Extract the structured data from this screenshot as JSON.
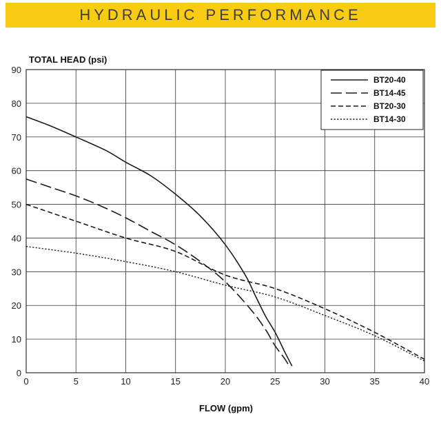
{
  "header": {
    "title": "HYDRAULIC PERFORMANCE",
    "color": "#f9cc14"
  },
  "chart_data": {
    "type": "line",
    "xlabel": "FLOW (gpm)",
    "ylabel": "TOTAL HEAD (psi)",
    "xlim": [
      0,
      40
    ],
    "ylim": [
      0,
      90
    ],
    "xticks": [
      0,
      5,
      10,
      15,
      20,
      25,
      30,
      35,
      40
    ],
    "yticks": [
      0,
      10,
      20,
      30,
      40,
      50,
      60,
      70,
      80,
      90
    ],
    "grid": true,
    "legend_position": "top-right",
    "series": [
      {
        "name": "BT20-40",
        "dash": "solid",
        "points": [
          [
            0,
            76
          ],
          [
            2.5,
            73.2
          ],
          [
            5,
            70
          ],
          [
            8,
            66
          ],
          [
            10,
            62.5
          ],
          [
            12.5,
            58.5
          ],
          [
            15,
            53
          ],
          [
            17.5,
            46.5
          ],
          [
            20,
            38
          ],
          [
            22,
            29
          ],
          [
            23,
            23
          ],
          [
            24,
            17
          ],
          [
            25,
            12
          ],
          [
            26,
            6
          ],
          [
            26.7,
            2
          ]
        ]
      },
      {
        "name": "BT14-45",
        "dash": "long",
        "points": [
          [
            0,
            57.5
          ],
          [
            2.5,
            55
          ],
          [
            5,
            52.5
          ],
          [
            7.5,
            49.5
          ],
          [
            10,
            46
          ],
          [
            12.5,
            42
          ],
          [
            15,
            38
          ],
          [
            17.5,
            33
          ],
          [
            20,
            27
          ],
          [
            22.5,
            19
          ],
          [
            24,
            13
          ],
          [
            25,
            8
          ],
          [
            26,
            4
          ],
          [
            26.5,
            1.5
          ]
        ]
      },
      {
        "name": "BT20-30",
        "dash": "short",
        "points": [
          [
            0,
            50
          ],
          [
            5,
            45
          ],
          [
            10,
            40
          ],
          [
            15,
            36
          ],
          [
            20,
            29
          ],
          [
            25,
            25
          ],
          [
            30,
            19
          ],
          [
            35,
            12
          ],
          [
            40,
            4
          ]
        ]
      },
      {
        "name": "BT14-30",
        "dash": "dotted",
        "points": [
          [
            0,
            37.5
          ],
          [
            5,
            35.5
          ],
          [
            10,
            33
          ],
          [
            15,
            30
          ],
          [
            20,
            26
          ],
          [
            25,
            22.5
          ],
          [
            30,
            17
          ],
          [
            35,
            11
          ],
          [
            40,
            3.5
          ]
        ]
      }
    ]
  }
}
